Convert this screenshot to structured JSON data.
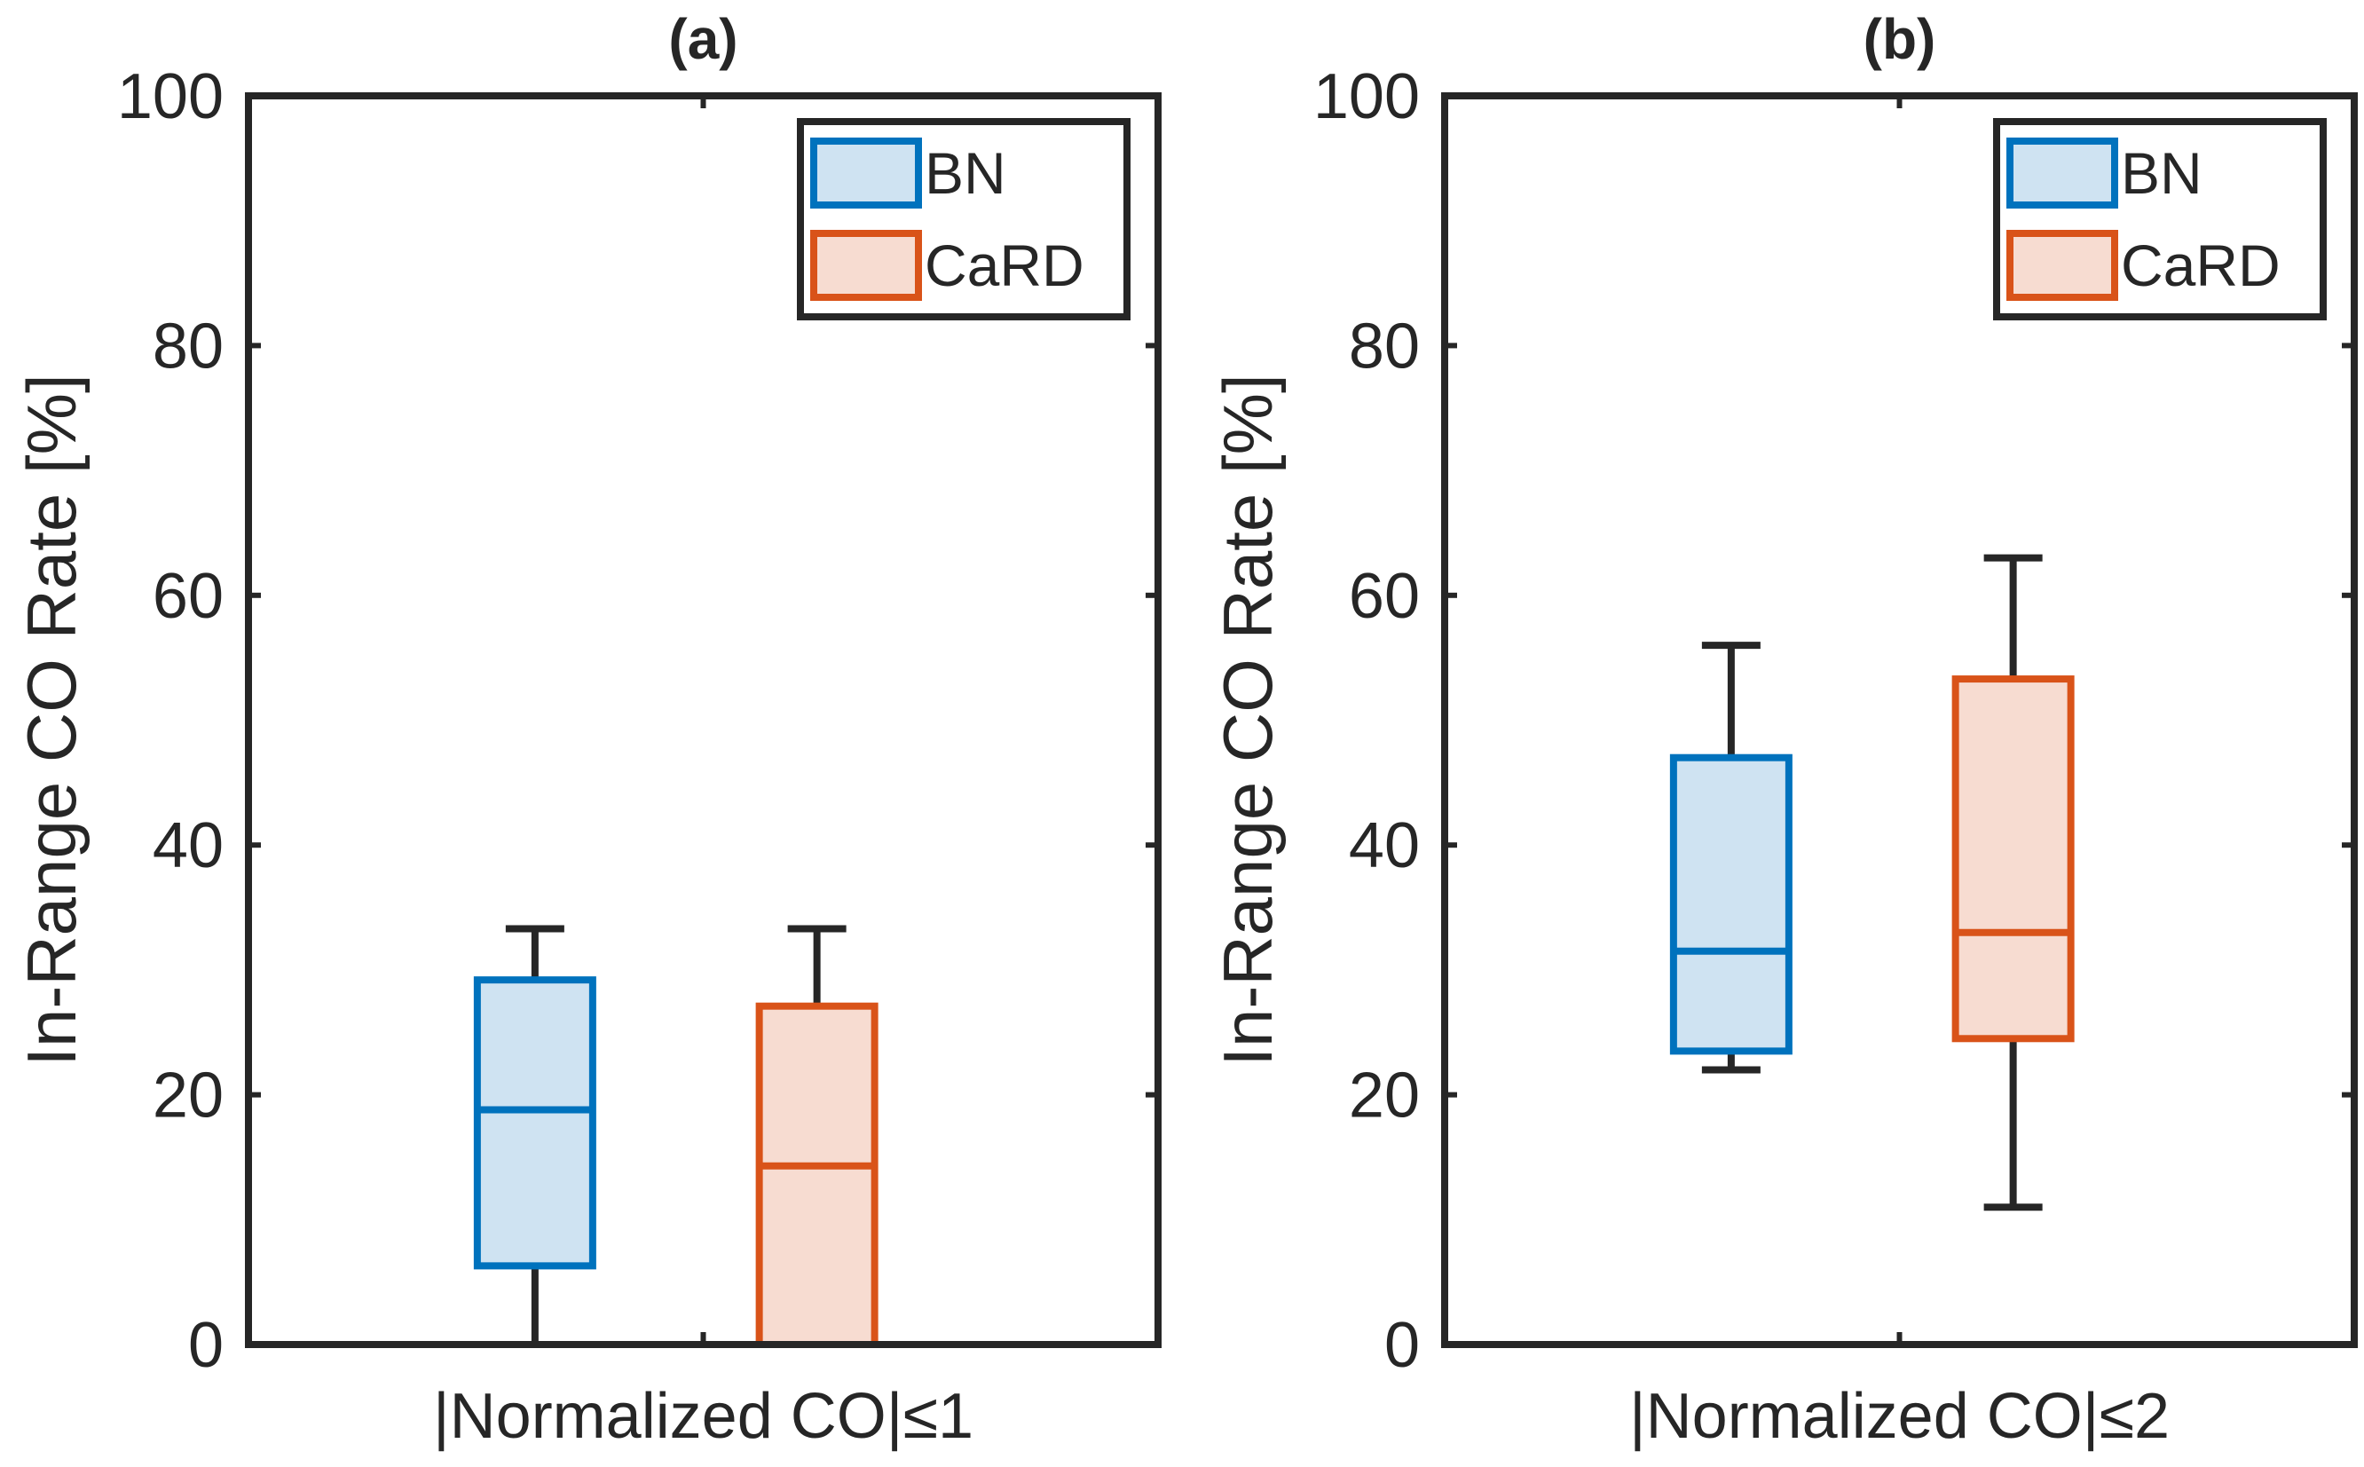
{
  "chart_data": [
    {
      "type": "box",
      "title": "(a)",
      "xlabel": "|Normalized CO|≤1",
      "ylabel": "In-Range CO Rate [%]",
      "ylim": [
        0,
        100
      ],
      "yticks": [
        0,
        20,
        40,
        60,
        80,
        100
      ],
      "legend": {
        "position": "top-right",
        "entries": [
          "BN",
          "CaRD"
        ]
      },
      "series": [
        {
          "name": "BN",
          "color": "#0072BD",
          "fill": "#cfe3f2",
          "whisker_low": 0,
          "q1": 6.3,
          "median": 18.8,
          "q3": 29.2,
          "whisker_high": 33.3
        },
        {
          "name": "CaRD",
          "color": "#D95319",
          "fill": "#f7dcd1",
          "whisker_low": 0,
          "q1": 0,
          "median": 14.3,
          "q3": 27.1,
          "whisker_high": 33.3
        }
      ]
    },
    {
      "type": "box",
      "title": "(b)",
      "xlabel": "|Normalized CO|≤2",
      "ylabel": "In-Range CO Rate [%]",
      "ylim": [
        0,
        100
      ],
      "yticks": [
        0,
        20,
        40,
        60,
        80,
        100
      ],
      "legend": {
        "position": "top-right",
        "entries": [
          "BN",
          "CaRD"
        ]
      },
      "series": [
        {
          "name": "BN",
          "color": "#0072BD",
          "fill": "#cfe3f2",
          "whisker_low": 22,
          "q1": 23.5,
          "median": 31.5,
          "q3": 47,
          "whisker_high": 56
        },
        {
          "name": "CaRD",
          "color": "#D95319",
          "fill": "#f7dcd1",
          "whisker_low": 11,
          "q1": 24.5,
          "median": 33,
          "q3": 53.3,
          "whisker_high": 63
        }
      ]
    }
  ]
}
